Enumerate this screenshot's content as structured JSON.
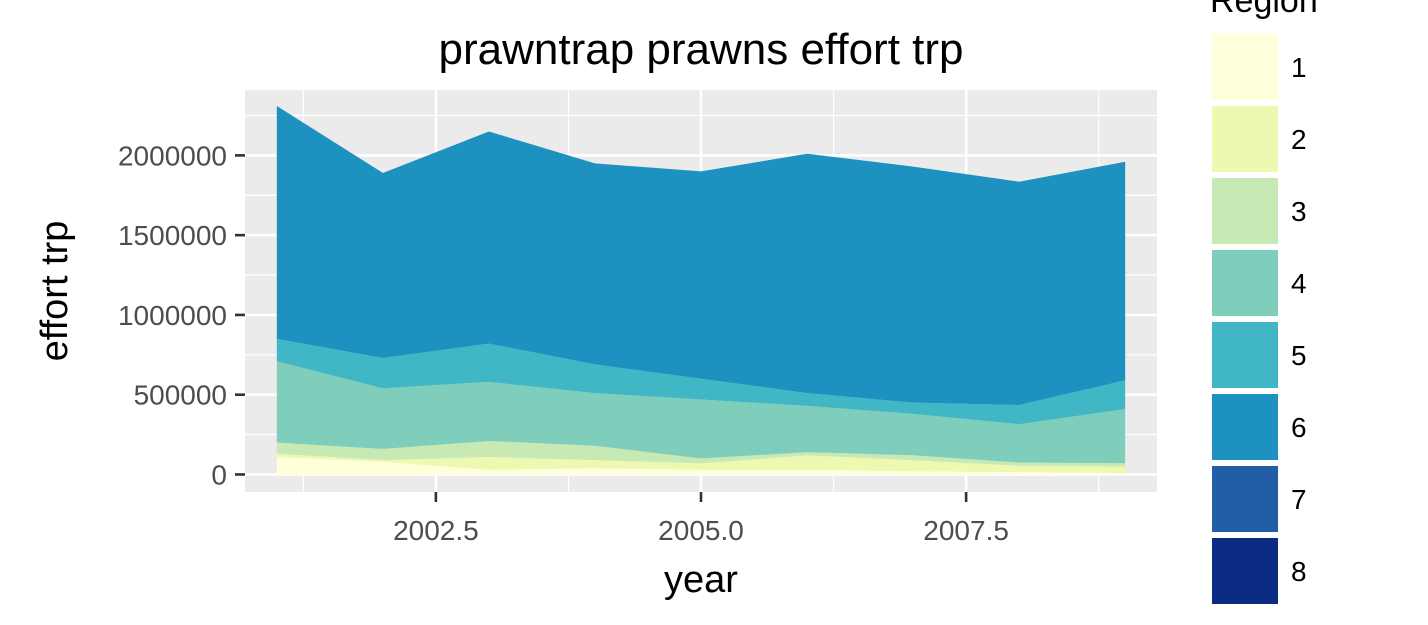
{
  "chart_data": {
    "type": "area",
    "stacked": true,
    "title": "prawntrap prawns effort trp",
    "xlabel": "year",
    "ylabel": "effort trp",
    "xlim": [
      2000.7,
      2009.3
    ],
    "ylim": [
      -110000,
      2410000
    ],
    "x_ticks": [
      2002.5,
      2005.0,
      2007.5
    ],
    "x_tick_labels": [
      "2002.5",
      "2005.0",
      "2007.5"
    ],
    "y_ticks": [
      0,
      500000,
      1000000,
      1500000,
      2000000
    ],
    "y_tick_labels": [
      "0",
      "500000",
      "1000000",
      "1500000",
      "2000000"
    ],
    "grid": true,
    "legend_title": "Region",
    "legend_position": "right",
    "x": [
      2001,
      2002,
      2003,
      2004,
      2005,
      2006,
      2007,
      2008,
      2009
    ],
    "series": [
      {
        "name": "1",
        "color": "#FFFFD9",
        "values": [
          110000,
          80000,
          30000,
          40000,
          30000,
          30000,
          20000,
          15000,
          10000
        ]
      },
      {
        "name": "2",
        "color": "#EDF8B1",
        "values": [
          20000,
          10000,
          80000,
          50000,
          40000,
          90000,
          70000,
          40000,
          40000
        ]
      },
      {
        "name": "3",
        "color": "#C7E9B4",
        "values": [
          70000,
          70000,
          100000,
          90000,
          30000,
          20000,
          30000,
          20000,
          20000
        ]
      },
      {
        "name": "4",
        "color": "#7FCDBB",
        "values": [
          510000,
          380000,
          370000,
          330000,
          370000,
          290000,
          260000,
          240000,
          340000
        ]
      },
      {
        "name": "5",
        "color": "#41B6C4",
        "values": [
          140000,
          190000,
          240000,
          180000,
          130000,
          80000,
          70000,
          120000,
          180000
        ]
      },
      {
        "name": "6",
        "color": "#1D91C0",
        "values": [
          1460000,
          1160000,
          1330000,
          1260000,
          1300000,
          1500000,
          1480000,
          1400000,
          1370000
        ]
      },
      {
        "name": "7",
        "color": "#225EA8",
        "values": [
          0,
          0,
          0,
          0,
          0,
          0,
          0,
          0,
          0
        ]
      },
      {
        "name": "8",
        "color": "#0C2C84",
        "values": [
          0,
          0,
          0,
          0,
          0,
          0,
          0,
          0,
          0
        ]
      }
    ]
  }
}
